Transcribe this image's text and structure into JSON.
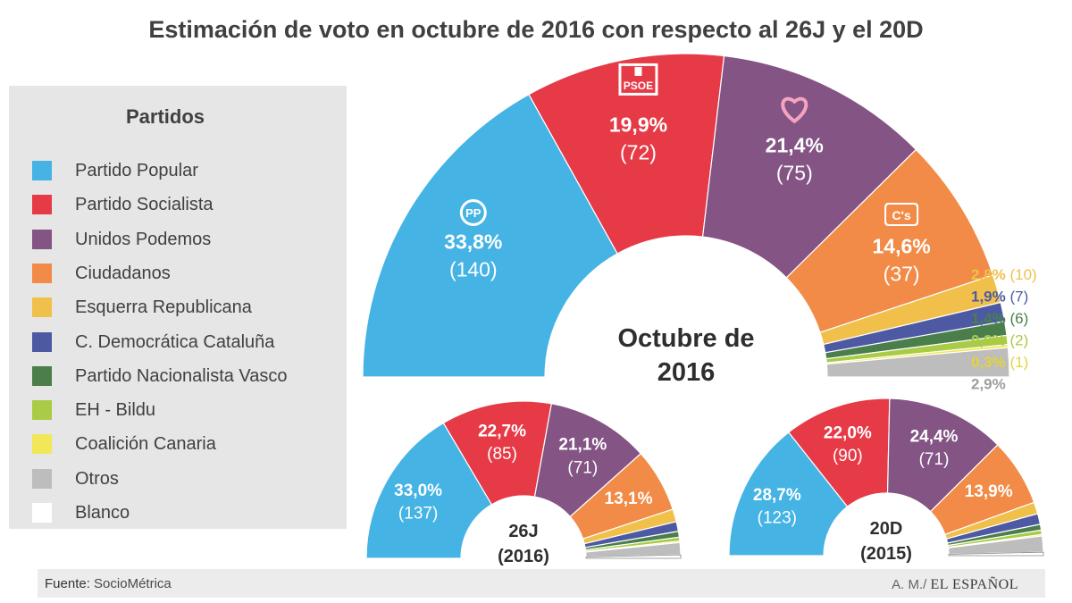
{
  "title": "Estimación de voto en octubre de 2016 con respecto al 26J y el 20D",
  "legend": {
    "title": "Partidos",
    "items": [
      {
        "label": "Partido Popular",
        "color": "#45b3e4"
      },
      {
        "label": "Partido Socialista",
        "color": "#e63a47"
      },
      {
        "label": "Unidos Podemos",
        "color": "#835484"
      },
      {
        "label": "Ciudadanos",
        "color": "#f18b47"
      },
      {
        "label": "Esquerra Republicana",
        "color": "#f0c04b"
      },
      {
        "label": "C. Democrática Cataluña",
        "color": "#4d5aa3"
      },
      {
        "label": "Partido Nacionalista Vasco",
        "color": "#4a7f4c"
      },
      {
        "label": "EH - Bildu",
        "color": "#a9cb45"
      },
      {
        "label": "Coalición Canaria",
        "color": "#f1e758"
      },
      {
        "label": "Otros",
        "color": "#bdbdbd"
      },
      {
        "label": "Blanco",
        "color": "#ffffff"
      }
    ]
  },
  "footer": {
    "source_label": "Fuente:",
    "source": "SocioMétrica",
    "author": "A. M./",
    "brand": "EL ESPAÑOL"
  },
  "chart_data": [
    {
      "type": "pie",
      "subtype": "semicircle",
      "center_label": [
        "Octubre de",
        "2016"
      ],
      "logos": {
        "pp": "PP",
        "psoe": "PSOE",
        "cs": "C's",
        "podemos": "heart-icon"
      },
      "slices": [
        {
          "party": "Partido Popular",
          "value": 33.8,
          "seats": 140,
          "label": "33,8%",
          "seats_label": "(140)"
        },
        {
          "party": "Partido Socialista",
          "value": 19.9,
          "seats": 72,
          "label": "19,9%",
          "seats_label": "(72)"
        },
        {
          "party": "Unidos Podemos",
          "value": 21.4,
          "seats": 75,
          "label": "21,4%",
          "seats_label": "(75)"
        },
        {
          "party": "Ciudadanos",
          "value": 14.6,
          "seats": 37,
          "label": "14,6%",
          "seats_label": "(37)"
        },
        {
          "party": "Esquerra Republicana",
          "value": 2.8,
          "seats": 10,
          "label": "2,8%",
          "seats_label": "(10)"
        },
        {
          "party": "C. Democrática Cataluña",
          "value": 1.9,
          "seats": 7,
          "label": "1,9%",
          "seats_label": "(7)"
        },
        {
          "party": "Partido Nacionalista Vasco",
          "value": 1.4,
          "seats": 6,
          "label": "1,4%",
          "seats_label": "(6)"
        },
        {
          "party": "EH - Bildu",
          "value": 0.9,
          "seats": 2,
          "label": "0,9%",
          "seats_label": "(2)"
        },
        {
          "party": "Coalición Canaria",
          "value": 0.3,
          "seats": 1,
          "label": "0,3%",
          "seats_label": "(1)"
        },
        {
          "party": "Otros",
          "value": 2.9,
          "label": "2,9%"
        }
      ]
    },
    {
      "type": "pie",
      "subtype": "semicircle",
      "center_label": [
        "26J",
        "(2016)"
      ],
      "slices": [
        {
          "party": "Partido Popular",
          "value": 33.0,
          "seats": 137,
          "label": "33,0%",
          "seats_label": "(137)"
        },
        {
          "party": "Partido Socialista",
          "value": 22.7,
          "seats": 85,
          "label": "22,7%",
          "seats_label": "(85)"
        },
        {
          "party": "Unidos Podemos",
          "value": 21.1,
          "seats": 71,
          "label": "21,1%",
          "seats_label": "(71)"
        },
        {
          "party": "Ciudadanos",
          "value": 13.1,
          "label": "13,1%"
        },
        {
          "party": "Esquerra Republicana",
          "value": 2.6
        },
        {
          "party": "C. Democrática Cataluña",
          "value": 2.0
        },
        {
          "party": "Partido Nacionalista Vasco",
          "value": 1.2
        },
        {
          "party": "EH - Bildu",
          "value": 0.8
        },
        {
          "party": "Coalición Canaria",
          "value": 0.3
        },
        {
          "party": "Otros",
          "value": 2.5
        },
        {
          "party": "Blanco",
          "value": 0.7
        }
      ]
    },
    {
      "type": "pie",
      "subtype": "semicircle",
      "center_label": [
        "20D",
        "(2015)"
      ],
      "slices": [
        {
          "party": "Partido Popular",
          "value": 28.7,
          "seats": 123,
          "label": "28,7%",
          "seats_label": "(123)"
        },
        {
          "party": "Partido Socialista",
          "value": 22.0,
          "seats": 90,
          "label": "22,0%",
          "seats_label": "(90)"
        },
        {
          "party": "Unidos Podemos",
          "value": 24.4,
          "seats": 71,
          "label": "24,4%",
          "seats_label": "(71)"
        },
        {
          "party": "Ciudadanos",
          "value": 13.9,
          "label": "13,9%"
        },
        {
          "party": "Esquerra Republicana",
          "value": 2.4
        },
        {
          "party": "C. Democrática Cataluña",
          "value": 2.2
        },
        {
          "party": "Partido Nacionalista Vasco",
          "value": 1.2
        },
        {
          "party": "EH - Bildu",
          "value": 0.9
        },
        {
          "party": "Coalición Canaria",
          "value": 0.3
        },
        {
          "party": "Otros",
          "value": 3.3
        },
        {
          "party": "Blanco",
          "value": 0.7
        }
      ]
    }
  ]
}
